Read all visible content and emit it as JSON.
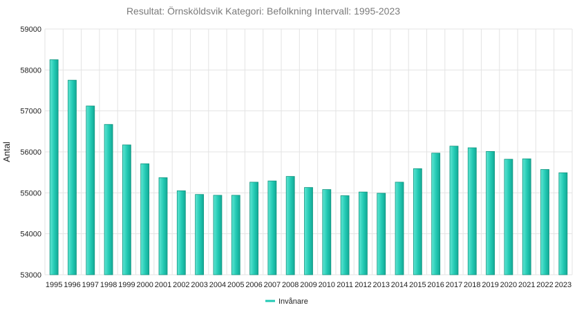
{
  "chart_data": {
    "type": "bar",
    "title": "Resultat: Örnsköldsvik Kategori: Befolkning Intervall: 1995-2023",
    "xlabel": "",
    "ylabel": "Antal",
    "categories": [
      "1995",
      "1996",
      "1997",
      "1998",
      "1999",
      "2000",
      "2001",
      "2002",
      "2003",
      "2004",
      "2005",
      "2006",
      "2007",
      "2008",
      "2009",
      "2010",
      "2011",
      "2012",
      "2013",
      "2014",
      "2015",
      "2016",
      "2017",
      "2018",
      "2019",
      "2020",
      "2021",
      "2022",
      "2023"
    ],
    "series": [
      {
        "name": "Invånare",
        "color": "#1fc9b4",
        "values": [
          58250,
          57750,
          57120,
          56670,
          56170,
          55710,
          55370,
          55050,
          54960,
          54940,
          54940,
          55260,
          55290,
          55400,
          55130,
          55080,
          54930,
          55020,
          54990,
          55260,
          55590,
          55970,
          56140,
          56100,
          56010,
          55820,
          55830,
          55570,
          55490
        ]
      }
    ],
    "ylim": [
      53000,
      59000
    ],
    "yticks": [
      53000,
      54000,
      55000,
      56000,
      57000,
      58000,
      59000
    ],
    "grid": true,
    "legend_position": "bottom-center"
  }
}
